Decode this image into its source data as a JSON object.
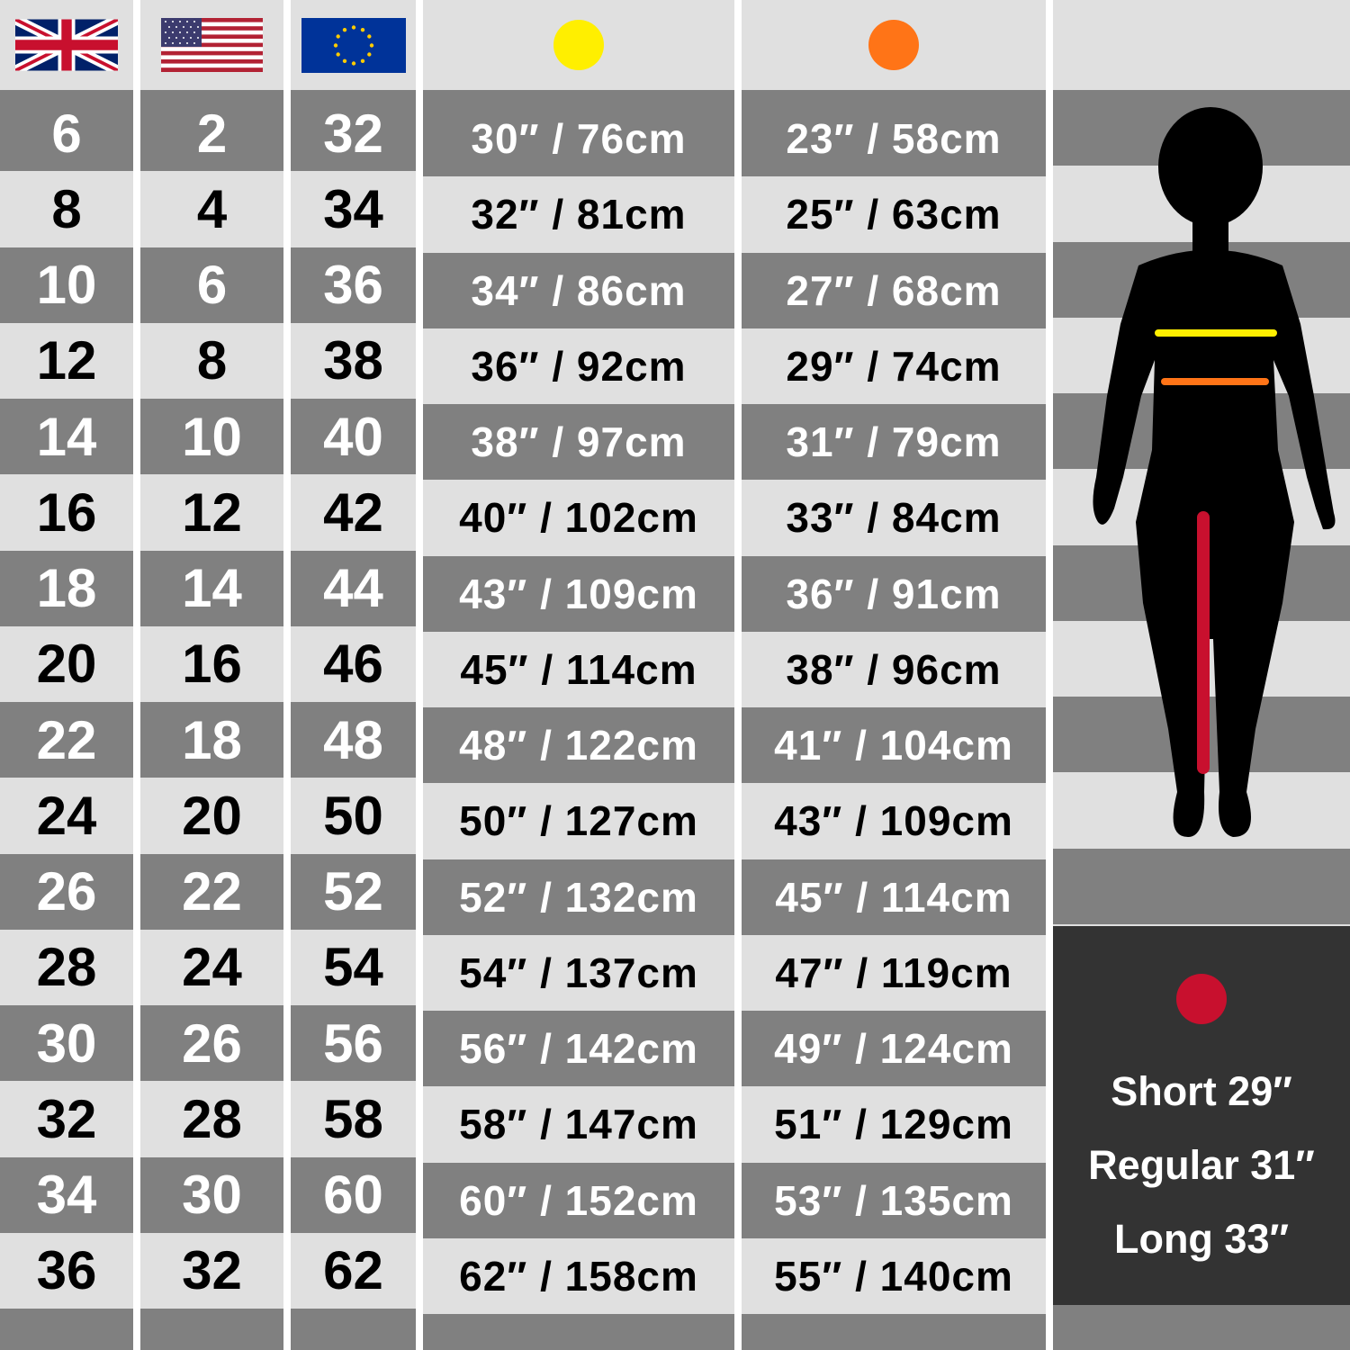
{
  "headers": {
    "uk": {
      "icon": "uk-flag-icon"
    },
    "us": {
      "icon": "us-flag-icon"
    },
    "eu": {
      "icon": "eu-flag-icon"
    },
    "hips": {
      "icon": "yellow-dot-icon",
      "color": "#ffef00"
    },
    "waist": {
      "icon": "orange-dot-icon",
      "color": "#ff7417"
    }
  },
  "colors": {
    "dark_row": "#808080",
    "light_row": "#e0e0e0",
    "inseam": "#c8102e",
    "length_box": "#333333"
  },
  "rows": [
    {
      "uk": "6",
      "us": "2",
      "eu": "32",
      "hips": "30″ / 76cm",
      "waist": "23″ / 58cm"
    },
    {
      "uk": "8",
      "us": "4",
      "eu": "34",
      "hips": "32″ / 81cm",
      "waist": "25″ / 63cm"
    },
    {
      "uk": "10",
      "us": "6",
      "eu": "36",
      "hips": "34″ / 86cm",
      "waist": "27″ / 68cm"
    },
    {
      "uk": "12",
      "us": "8",
      "eu": "38",
      "hips": "36″ / 92cm",
      "waist": "29″ / 74cm"
    },
    {
      "uk": "14",
      "us": "10",
      "eu": "40",
      "hips": "38″ / 97cm",
      "waist": "31″ / 79cm"
    },
    {
      "uk": "16",
      "us": "12",
      "eu": "42",
      "hips": "40″ / 102cm",
      "waist": "33″ / 84cm"
    },
    {
      "uk": "18",
      "us": "14",
      "eu": "44",
      "hips": "43″ / 109cm",
      "waist": "36″ / 91cm"
    },
    {
      "uk": "20",
      "us": "16",
      "eu": "46",
      "hips": "45″ / 114cm",
      "waist": "38″ / 96cm"
    },
    {
      "uk": "22",
      "us": "18",
      "eu": "48",
      "hips": "48″ / 122cm",
      "waist": "41″ / 104cm"
    },
    {
      "uk": "24",
      "us": "20",
      "eu": "50",
      "hips": "50″ / 127cm",
      "waist": "43″ / 109cm"
    },
    {
      "uk": "26",
      "us": "22",
      "eu": "52",
      "hips": "52″ / 132cm",
      "waist": "45″ / 114cm"
    },
    {
      "uk": "28",
      "us": "24",
      "eu": "54",
      "hips": "54″ / 137cm",
      "waist": "47″ / 119cm"
    },
    {
      "uk": "30",
      "us": "26",
      "eu": "56",
      "hips": "56″ / 142cm",
      "waist": "49″ / 124cm"
    },
    {
      "uk": "32",
      "us": "28",
      "eu": "58",
      "hips": "58″ / 147cm",
      "waist": "51″ / 129cm"
    },
    {
      "uk": "34",
      "us": "30",
      "eu": "60",
      "hips": "60″ / 152cm",
      "waist": "53″ / 135cm"
    },
    {
      "uk": "36",
      "us": "32",
      "eu": "62",
      "hips": "62″ / 158cm",
      "waist": "55″ / 140cm"
    }
  ],
  "lengths": {
    "icon": "red-dot-icon",
    "items": [
      "Short 29″",
      "Regular 31″",
      "Long 33″"
    ]
  }
}
